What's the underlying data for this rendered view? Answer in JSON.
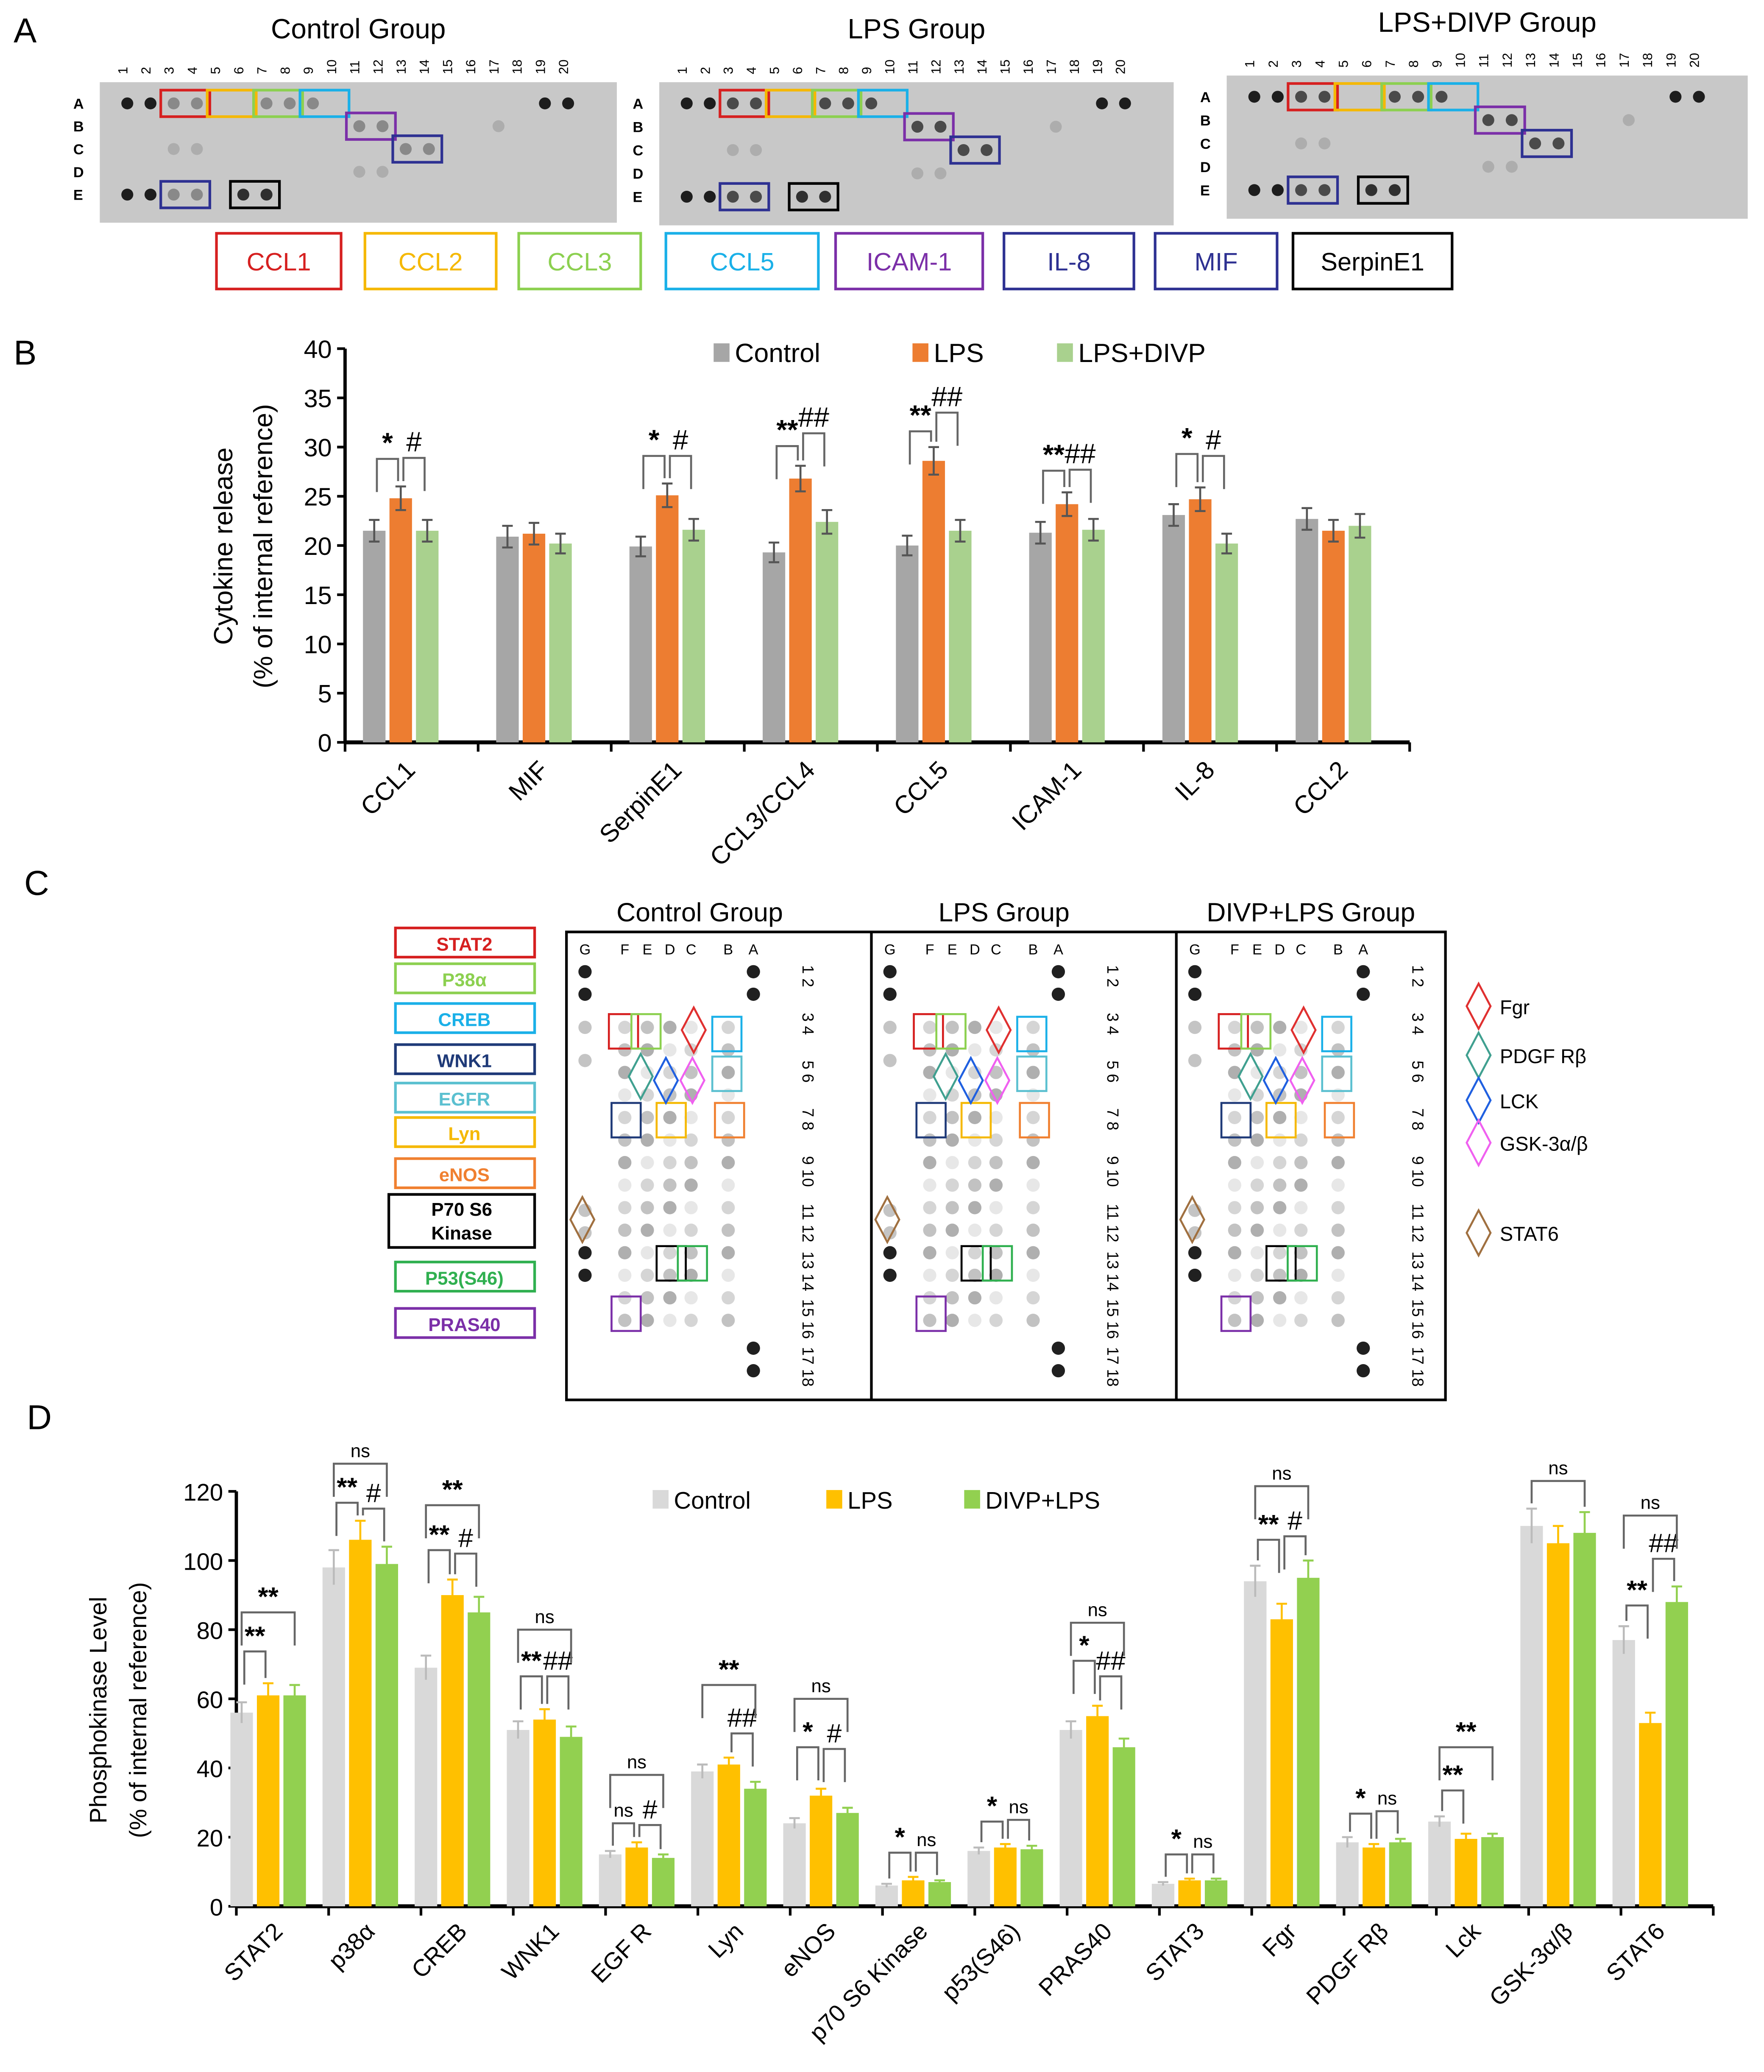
{
  "panel_labels": [
    "A",
    "B",
    "C",
    "D"
  ],
  "panel_a": {
    "groups": [
      "Control Group",
      "LPS Group",
      "LPS+DIVP Group"
    ],
    "column_numbers": [
      "1",
      "2",
      "3",
      "4",
      "5",
      "6",
      "7",
      "8",
      "9",
      "10",
      "11",
      "12",
      "13",
      "14",
      "15",
      "16",
      "17",
      "18",
      "19",
      "20"
    ],
    "row_letters": [
      "A",
      "B",
      "C",
      "D",
      "E"
    ],
    "legend": [
      {
        "label": "CCL1",
        "color": "#d62020"
      },
      {
        "label": "CCL2",
        "color": "#f5b800"
      },
      {
        "label": "CCL3",
        "color": "#8cd050"
      },
      {
        "label": "CCL5",
        "color": "#1ab0e8"
      },
      {
        "label": "ICAM-1",
        "color": "#7b2fa8"
      },
      {
        "label": "IL-8",
        "color": "#2e3192"
      },
      {
        "label": "MIF",
        "color": "#2e3192"
      },
      {
        "label": "SerpinE1",
        "color": "#000000"
      }
    ]
  },
  "panel_c": {
    "groups": [
      "Control Group",
      "LPS Group",
      "DIVP+LPS Group"
    ],
    "column_letters": [
      "G",
      "F",
      "E",
      "D",
      "C",
      "B",
      "A"
    ],
    "row_numbers": [
      "1 2",
      "3 4",
      "5 6",
      "7 8",
      "9 10",
      "11 12",
      "13 14",
      "15 16",
      "17 18"
    ],
    "left_legend": [
      {
        "label": "STAT2",
        "color": "#d62020"
      },
      {
        "label": "P38α",
        "color": "#8cd050"
      },
      {
        "label": "CREB",
        "color": "#1ab0e8"
      },
      {
        "label": "WNK1",
        "color": "#1f3a78"
      },
      {
        "label": "EGFR",
        "color": "#5bc0d0"
      },
      {
        "label": "Lyn",
        "color": "#f5b800"
      },
      {
        "label": "eNOS",
        "color": "#f08030"
      },
      {
        "label": "P70  S6 Kinase",
        "color": "#000000"
      },
      {
        "label": "P53(S46)",
        "color": "#30b050"
      },
      {
        "label": "PRAS40",
        "color": "#7b2fa8"
      }
    ],
    "right_legend": [
      {
        "label": "Fgr",
        "color": "#e03030"
      },
      {
        "label": "PDGF Rβ",
        "color": "#40a090"
      },
      {
        "label": "LCK",
        "color": "#2060e0"
      },
      {
        "label": "GSK-3α/β",
        "color": "#f060f0"
      },
      {
        "label": "STAT6",
        "color": "#a07040"
      }
    ]
  },
  "chart_data": [
    {
      "type": "bar",
      "panel": "B",
      "ylabel": "Cytokine release",
      "ylabel2": "(% of internal reference)",
      "ylim": [
        0,
        40
      ],
      "yticks": [
        0,
        5,
        10,
        15,
        20,
        25,
        30,
        35,
        40
      ],
      "legend_placement": "top",
      "categories": [
        "CCL1",
        "MIF",
        "SerpinE1",
        "CCL3/CCL4",
        "CCL5",
        "ICAM-1",
        "IL-8",
        "CCL2"
      ],
      "series": [
        {
          "name": "Control",
          "color": "#a6a6a6",
          "values": [
            21.5,
            20.9,
            19.9,
            19.3,
            20.0,
            21.3,
            23.1,
            22.7
          ],
          "errors": [
            1.1,
            1.1,
            1.0,
            1.0,
            1.0,
            1.1,
            1.1,
            1.1
          ]
        },
        {
          "name": "LPS",
          "color": "#ed7d31",
          "values": [
            24.8,
            21.2,
            25.1,
            26.8,
            28.6,
            24.2,
            24.7,
            21.5
          ],
          "errors": [
            1.2,
            1.1,
            1.2,
            1.3,
            1.4,
            1.2,
            1.2,
            1.1
          ]
        },
        {
          "name": "LPS+DIVP",
          "color": "#a9d18e",
          "values": [
            21.5,
            20.2,
            21.6,
            22.4,
            21.5,
            21.6,
            20.2,
            22.0
          ],
          "errors": [
            1.1,
            1.0,
            1.1,
            1.2,
            1.1,
            1.1,
            1.0,
            1.2
          ]
        }
      ],
      "annotations": [
        {
          "category": "CCL1",
          "from": 0,
          "to": 1,
          "label": "*",
          "y": 28.8
        },
        {
          "category": "CCL1",
          "from": 1,
          "to": 2,
          "label": "#",
          "y": 28.9
        },
        {
          "category": "SerpinE1",
          "from": 0,
          "to": 1,
          "label": "*",
          "y": 29.1
        },
        {
          "category": "SerpinE1",
          "from": 1,
          "to": 2,
          "label": "#",
          "y": 29.1
        },
        {
          "category": "CCL3/CCL4",
          "from": 0,
          "to": 1,
          "label": "**",
          "y": 30.1
        },
        {
          "category": "CCL3/CCL4",
          "from": 1,
          "to": 2,
          "label": "##",
          "y": 31.4
        },
        {
          "category": "CCL5",
          "from": 0,
          "to": 1,
          "label": "**",
          "y": 31.6
        },
        {
          "category": "CCL5",
          "from": 1,
          "to": 2,
          "label": "##",
          "y": 33.5
        },
        {
          "category": "ICAM-1",
          "from": 0,
          "to": 1,
          "label": "**",
          "y": 27.6
        },
        {
          "category": "ICAM-1",
          "from": 1,
          "to": 2,
          "label": "##",
          "y": 27.7
        },
        {
          "category": "IL-8",
          "from": 0,
          "to": 1,
          "label": "*",
          "y": 29.3
        },
        {
          "category": "IL-8",
          "from": 1,
          "to": 2,
          "label": "#",
          "y": 29.1
        }
      ]
    },
    {
      "type": "bar",
      "panel": "D",
      "ylabel": "Phosphokinase Level",
      "ylabel2": "(% of internal reference)",
      "ylim": [
        0,
        120
      ],
      "yticks": [
        0,
        20,
        40,
        60,
        80,
        100,
        120
      ],
      "legend_placement": "top",
      "categories": [
        "STAT2",
        "p38α",
        "CREB",
        "WNK1",
        "EGF R",
        "Lyn",
        "eNOS",
        "p70 S6 Kinase",
        "p53(S46)",
        "PRAS40",
        "STAT3",
        "Fgr",
        "PDGF Rβ",
        "Lck",
        "GSK-3α/β",
        "STAT6"
      ],
      "series": [
        {
          "name": "Control",
          "color": "#d9d9d9",
          "values": [
            56,
            98,
            69,
            51,
            15,
            39,
            24,
            6,
            16,
            51,
            6.5,
            94,
            18.5,
            24.5,
            110,
            77
          ],
          "errors": [
            3,
            5,
            3.5,
            2.5,
            1,
            2,
            1.5,
            0.5,
            1,
            2.5,
            0.5,
            4.5,
            1.5,
            1.5,
            5,
            4
          ]
        },
        {
          "name": "LPS",
          "color": "#ffc000",
          "values": [
            61,
            106,
            90,
            54,
            17,
            41,
            32,
            7.5,
            17,
            55,
            7.5,
            83,
            17,
            19.5,
            105,
            53
          ],
          "errors": [
            3.5,
            5.5,
            4.5,
            3,
            1.5,
            2,
            2,
            1,
            1,
            3,
            0.5,
            4.5,
            1,
            1.5,
            5,
            3
          ]
        },
        {
          "name": "DIVP+LPS",
          "color": "#92d050",
          "values": [
            61,
            99,
            85,
            49,
            14,
            34,
            27,
            7,
            16.5,
            46,
            7.5,
            95,
            18.5,
            20,
            108,
            88
          ],
          "errors": [
            3,
            5,
            4.5,
            3,
            1,
            2,
            1.5,
            0.5,
            1,
            2.5,
            0.5,
            5,
            1,
            1,
            6,
            4.5
          ]
        }
      ],
      "annotations": [
        {
          "category": "STAT2",
          "from": 0,
          "to": 1,
          "label": "**",
          "y": 73.7
        },
        {
          "category": "STAT2",
          "from": 0,
          "to": 2,
          "label": "**",
          "y": 85
        },
        {
          "category": "p38α",
          "from": 0,
          "to": 1,
          "label": "**",
          "y": 116.7
        },
        {
          "category": "p38α",
          "from": 1,
          "to": 2,
          "label": "#",
          "y": 115
        },
        {
          "category": "p38α",
          "from": 0,
          "to": 2,
          "label": "ns",
          "y": 128
        },
        {
          "category": "CREB",
          "from": 0,
          "to": 1,
          "label": "**",
          "y": 103
        },
        {
          "category": "CREB",
          "from": 1,
          "to": 2,
          "label": "#",
          "y": 102
        },
        {
          "category": "CREB",
          "from": 0,
          "to": 2,
          "label": "**",
          "y": 116
        },
        {
          "category": "WNK1",
          "from": 0,
          "to": 1,
          "label": "**",
          "y": 66.5
        },
        {
          "category": "WNK1",
          "from": 1,
          "to": 2,
          "label": "##",
          "y": 66.5
        },
        {
          "category": "WNK1",
          "from": 0,
          "to": 2,
          "label": "ns",
          "y": 80
        },
        {
          "category": "EGF R",
          "from": 0,
          "to": 1,
          "label": "ns",
          "y": 24
        },
        {
          "category": "EGF R",
          "from": 1,
          "to": 2,
          "label": "#",
          "y": 23.5
        },
        {
          "category": "EGF R",
          "from": 0,
          "to": 2,
          "label": "ns",
          "y": 38
        },
        {
          "category": "Lyn",
          "from": 1,
          "to": 2,
          "label": "##",
          "y": 50
        },
        {
          "category": "Lyn",
          "from": 0,
          "to": 2,
          "label": "**",
          "y": 64
        },
        {
          "category": "eNOS",
          "from": 0,
          "to": 1,
          "label": "*",
          "y": 46
        },
        {
          "category": "eNOS",
          "from": 1,
          "to": 2,
          "label": "#",
          "y": 45.5
        },
        {
          "category": "eNOS",
          "from": 0,
          "to": 2,
          "label": "ns",
          "y": 60
        },
        {
          "category": "p70 S6 Kinase",
          "from": 0,
          "to": 1,
          "label": "*",
          "y": 15.5
        },
        {
          "category": "p70 S6 Kinase",
          "from": 1,
          "to": 2,
          "label": "ns",
          "y": 15.5
        },
        {
          "category": "p53(S46)",
          "from": 0,
          "to": 1,
          "label": "*",
          "y": 24.5
        },
        {
          "category": "p53(S46)",
          "from": 1,
          "to": 2,
          "label": "ns",
          "y": 25
        },
        {
          "category": "PRAS40",
          "from": 0,
          "to": 1,
          "label": "*",
          "y": 71
        },
        {
          "category": "PRAS40",
          "from": 1,
          "to": 2,
          "label": "##",
          "y": 66.5
        },
        {
          "category": "PRAS40",
          "from": 0,
          "to": 2,
          "label": "ns",
          "y": 82
        },
        {
          "category": "STAT3",
          "from": 0,
          "to": 1,
          "label": "*",
          "y": 15
        },
        {
          "category": "STAT3",
          "from": 1,
          "to": 2,
          "label": "ns",
          "y": 15
        },
        {
          "category": "Fgr",
          "from": 0,
          "to": 1,
          "label": "**",
          "y": 106
        },
        {
          "category": "Fgr",
          "from": 1,
          "to": 2,
          "label": "#",
          "y": 107
        },
        {
          "category": "Fgr",
          "from": 0,
          "to": 2,
          "label": "ns",
          "y": 121.5
        },
        {
          "category": "PDGF Rβ",
          "from": 0,
          "to": 1,
          "label": "*",
          "y": 26.8
        },
        {
          "category": "PDGF Rβ",
          "from": 1,
          "to": 2,
          "label": "ns",
          "y": 27.5
        },
        {
          "category": "Lck",
          "from": 0,
          "to": 1,
          "label": "**",
          "y": 33.5
        },
        {
          "category": "Lck",
          "from": 0,
          "to": 2,
          "label": "**",
          "y": 46
        },
        {
          "category": "GSK-3α/β",
          "from": 0,
          "to": 2,
          "label": "ns",
          "y": 123
        },
        {
          "category": "STAT6",
          "from": 0,
          "to": 1,
          "label": "**",
          "y": 87
        },
        {
          "category": "STAT6",
          "from": 1,
          "to": 2,
          "label": "##",
          "y": 100.5
        },
        {
          "category": "STAT6",
          "from": 0,
          "to": 2,
          "label": "ns",
          "y": 113
        }
      ]
    }
  ]
}
